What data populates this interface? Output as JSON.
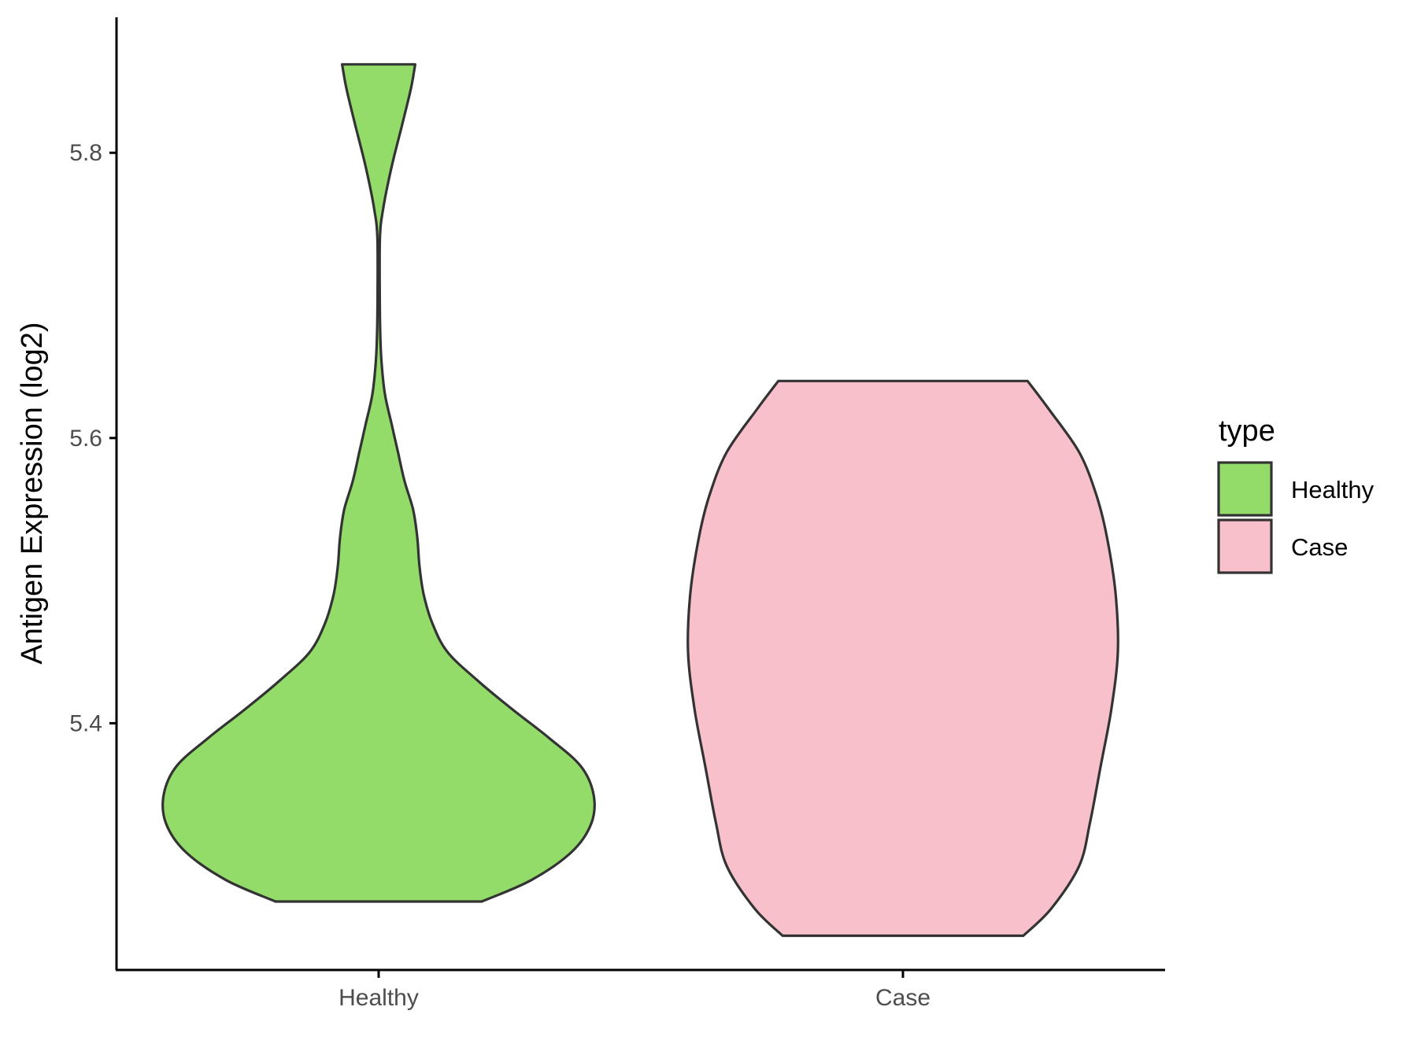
{
  "chart_data": {
    "type": "violin",
    "title": "",
    "xlabel": "",
    "ylabel": "Antigen Expression (log2)",
    "ylim": [
      5.227,
      5.895
    ],
    "yticks": [
      5.4,
      5.6,
      5.8
    ],
    "ytick_labels": [
      "5.4",
      "5.6",
      "5.8"
    ],
    "categories": [
      "Healthy",
      "Case"
    ],
    "grid": false,
    "legend": {
      "title": "type",
      "position": "right",
      "entries": [
        {
          "label": "Healthy",
          "color": "#93DC6A"
        },
        {
          "label": "Case",
          "color": "#F8C0CB"
        }
      ]
    },
    "series": [
      {
        "name": "Healthy",
        "color": "#93DC6A",
        "min": 5.275,
        "max": 5.862,
        "density_profile": [
          [
            5.275,
            0.48
          ],
          [
            5.29,
            0.71
          ],
          [
            5.31,
            0.9
          ],
          [
            5.33,
            0.99
          ],
          [
            5.35,
            1.0
          ],
          [
            5.37,
            0.94
          ],
          [
            5.39,
            0.79
          ],
          [
            5.41,
            0.62
          ],
          [
            5.43,
            0.46
          ],
          [
            5.45,
            0.32
          ],
          [
            5.47,
            0.25
          ],
          [
            5.49,
            0.21
          ],
          [
            5.51,
            0.19
          ],
          [
            5.53,
            0.18
          ],
          [
            5.55,
            0.16
          ],
          [
            5.57,
            0.12
          ],
          [
            5.59,
            0.09
          ],
          [
            5.61,
            0.06
          ],
          [
            5.63,
            0.03
          ],
          [
            5.65,
            0.015
          ],
          [
            5.67,
            0.008
          ],
          [
            5.7,
            0.005
          ],
          [
            5.74,
            0.006
          ],
          [
            5.76,
            0.02
          ],
          [
            5.79,
            0.06
          ],
          [
            5.82,
            0.11
          ],
          [
            5.845,
            0.15
          ],
          [
            5.862,
            0.17
          ]
        ]
      },
      {
        "name": "Case",
        "color": "#F8C0CB",
        "min": 5.251,
        "max": 5.64,
        "density_profile": [
          [
            5.251,
            0.56
          ],
          [
            5.27,
            0.69
          ],
          [
            5.3,
            0.82
          ],
          [
            5.33,
            0.87
          ],
          [
            5.37,
            0.92
          ],
          [
            5.41,
            0.97
          ],
          [
            5.45,
            1.0
          ],
          [
            5.49,
            0.99
          ],
          [
            5.53,
            0.95
          ],
          [
            5.56,
            0.9
          ],
          [
            5.59,
            0.82
          ],
          [
            5.62,
            0.68
          ],
          [
            5.64,
            0.58
          ]
        ]
      }
    ]
  }
}
